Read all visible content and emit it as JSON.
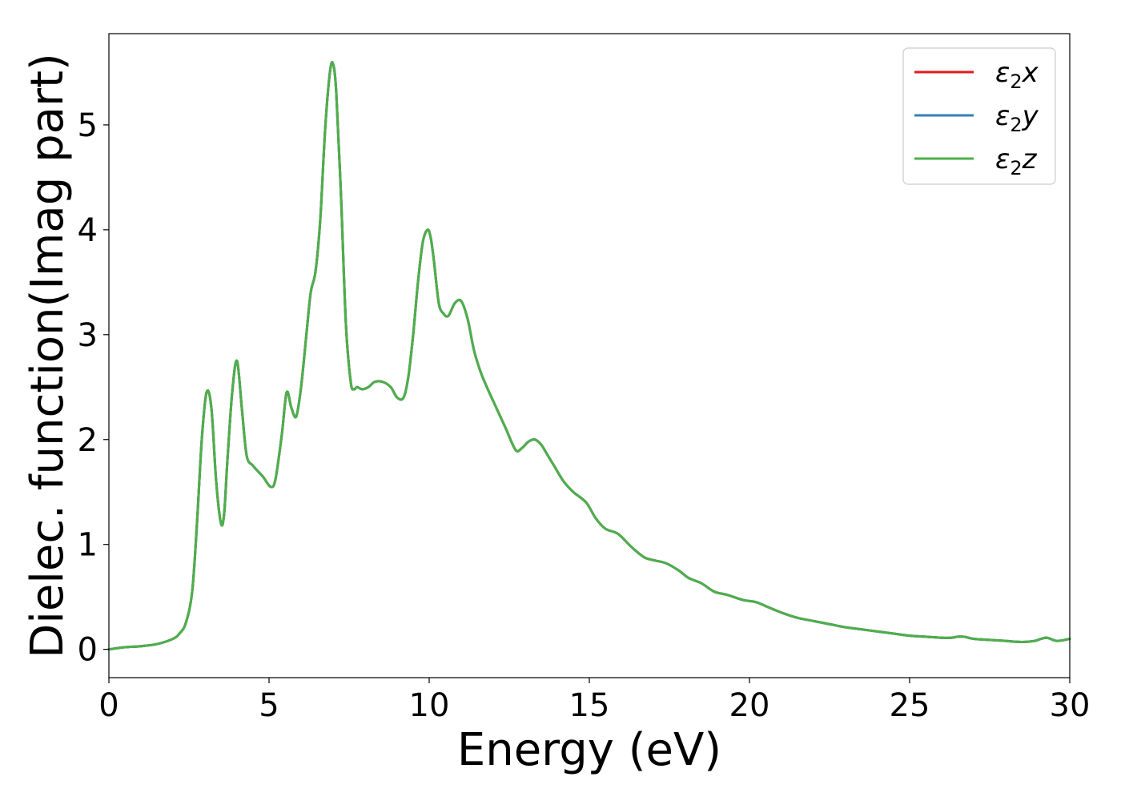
{
  "chart_data": {
    "type": "line",
    "xlabel": "Energy (eV)",
    "ylabel": "Dielec. function(Imag part)",
    "xlim": [
      0,
      30
    ],
    "ylim": [
      -0.27,
      5.87
    ],
    "xticks": [
      0,
      5,
      10,
      15,
      20,
      25,
      30
    ],
    "yticks": [
      0,
      1,
      2,
      3,
      4,
      5
    ],
    "grid": false,
    "legend_position": "top-right",
    "series": [
      {
        "name": "ε2x",
        "legend": {
          "base": "ε",
          "sub": "2",
          "var": "x"
        },
        "color": "#e41a1c",
        "x": [
          0,
          0.5,
          1.0,
          1.5,
          2.0,
          2.2,
          2.4,
          2.6,
          2.75,
          2.9,
          3.05,
          3.2,
          3.35,
          3.5,
          3.6,
          3.7,
          3.85,
          4.0,
          4.15,
          4.3,
          4.5,
          4.8,
          5.05,
          5.2,
          5.4,
          5.55,
          5.7,
          5.85,
          6.0,
          6.15,
          6.3,
          6.45,
          6.6,
          6.75,
          6.9,
          7.0,
          7.1,
          7.25,
          7.4,
          7.55,
          7.65,
          7.75,
          7.9,
          8.1,
          8.3,
          8.55,
          8.8,
          9.0,
          9.2,
          9.35,
          9.5,
          9.65,
          9.8,
          9.95,
          10.05,
          10.15,
          10.3,
          10.45,
          10.6,
          10.8,
          11.0,
          11.2,
          11.4,
          11.6,
          11.8,
          12.1,
          12.4,
          12.7,
          12.9,
          13.1,
          13.3,
          13.5,
          13.7,
          13.9,
          14.2,
          14.5,
          14.9,
          15.2,
          15.5,
          15.9,
          16.3,
          16.7,
          17.0,
          17.4,
          17.8,
          18.1,
          18.5,
          18.9,
          19.3,
          19.8,
          20.2,
          20.6,
          21.0,
          21.5,
          22.0,
          22.5,
          23.0,
          23.5,
          24.0,
          24.5,
          25.0,
          25.5,
          26.0,
          26.3,
          26.5,
          26.7,
          27.0,
          27.5,
          28.0,
          28.5,
          28.9,
          29.1,
          29.3,
          29.6,
          30.0
        ],
        "y": [
          0.0,
          0.02,
          0.03,
          0.05,
          0.1,
          0.15,
          0.25,
          0.55,
          1.2,
          2.0,
          2.45,
          2.3,
          1.6,
          1.2,
          1.3,
          1.8,
          2.45,
          2.75,
          2.3,
          1.85,
          1.75,
          1.65,
          1.55,
          1.62,
          2.05,
          2.45,
          2.3,
          2.22,
          2.5,
          2.95,
          3.4,
          3.6,
          4.1,
          4.95,
          5.5,
          5.58,
          5.3,
          4.3,
          3.1,
          2.55,
          2.48,
          2.5,
          2.48,
          2.5,
          2.55,
          2.55,
          2.5,
          2.4,
          2.4,
          2.6,
          3.0,
          3.5,
          3.88,
          4.0,
          3.92,
          3.7,
          3.3,
          3.2,
          3.18,
          3.3,
          3.32,
          3.15,
          2.85,
          2.65,
          2.5,
          2.3,
          2.1,
          1.9,
          1.92,
          1.98,
          2.0,
          1.95,
          1.85,
          1.75,
          1.6,
          1.5,
          1.4,
          1.25,
          1.15,
          1.1,
          0.98,
          0.88,
          0.85,
          0.82,
          0.75,
          0.68,
          0.63,
          0.55,
          0.52,
          0.47,
          0.45,
          0.4,
          0.35,
          0.3,
          0.27,
          0.24,
          0.21,
          0.19,
          0.17,
          0.15,
          0.13,
          0.12,
          0.11,
          0.11,
          0.12,
          0.12,
          0.1,
          0.09,
          0.08,
          0.07,
          0.08,
          0.1,
          0.11,
          0.08,
          0.1
        ]
      },
      {
        "name": "ε2y",
        "legend": {
          "base": "ε",
          "sub": "2",
          "var": "y"
        },
        "color": "#377eb8",
        "x": [
          0,
          0.5,
          1.0,
          1.5,
          2.0,
          2.2,
          2.4,
          2.6,
          2.75,
          2.9,
          3.05,
          3.2,
          3.35,
          3.5,
          3.6,
          3.7,
          3.85,
          4.0,
          4.15,
          4.3,
          4.5,
          4.8,
          5.05,
          5.2,
          5.4,
          5.55,
          5.7,
          5.85,
          6.0,
          6.15,
          6.3,
          6.45,
          6.6,
          6.75,
          6.9,
          7.0,
          7.1,
          7.25,
          7.4,
          7.55,
          7.65,
          7.75,
          7.9,
          8.1,
          8.3,
          8.55,
          8.8,
          9.0,
          9.2,
          9.35,
          9.5,
          9.65,
          9.8,
          9.95,
          10.05,
          10.15,
          10.3,
          10.45,
          10.6,
          10.8,
          11.0,
          11.2,
          11.4,
          11.6,
          11.8,
          12.1,
          12.4,
          12.7,
          12.9,
          13.1,
          13.3,
          13.5,
          13.7,
          13.9,
          14.2,
          14.5,
          14.9,
          15.2,
          15.5,
          15.9,
          16.3,
          16.7,
          17.0,
          17.4,
          17.8,
          18.1,
          18.5,
          18.9,
          19.3,
          19.8,
          20.2,
          20.6,
          21.0,
          21.5,
          22.0,
          22.5,
          23.0,
          23.5,
          24.0,
          24.5,
          25.0,
          25.5,
          26.0,
          26.3,
          26.5,
          26.7,
          27.0,
          27.5,
          28.0,
          28.5,
          28.9,
          29.1,
          29.3,
          29.6,
          30.0
        ],
        "y": [
          0.0,
          0.02,
          0.03,
          0.05,
          0.1,
          0.15,
          0.25,
          0.55,
          1.2,
          2.0,
          2.45,
          2.3,
          1.6,
          1.2,
          1.3,
          1.8,
          2.45,
          2.75,
          2.3,
          1.85,
          1.75,
          1.65,
          1.55,
          1.62,
          2.05,
          2.45,
          2.3,
          2.22,
          2.5,
          2.95,
          3.4,
          3.6,
          4.1,
          4.95,
          5.5,
          5.58,
          5.3,
          4.3,
          3.1,
          2.55,
          2.48,
          2.5,
          2.48,
          2.5,
          2.55,
          2.55,
          2.5,
          2.4,
          2.4,
          2.6,
          3.0,
          3.5,
          3.88,
          4.0,
          3.92,
          3.7,
          3.3,
          3.2,
          3.18,
          3.3,
          3.32,
          3.15,
          2.85,
          2.65,
          2.5,
          2.3,
          2.1,
          1.9,
          1.92,
          1.98,
          2.0,
          1.95,
          1.85,
          1.75,
          1.6,
          1.5,
          1.4,
          1.25,
          1.15,
          1.1,
          0.98,
          0.88,
          0.85,
          0.82,
          0.75,
          0.68,
          0.63,
          0.55,
          0.52,
          0.47,
          0.45,
          0.4,
          0.35,
          0.3,
          0.27,
          0.24,
          0.21,
          0.19,
          0.17,
          0.15,
          0.13,
          0.12,
          0.11,
          0.11,
          0.12,
          0.12,
          0.1,
          0.09,
          0.08,
          0.07,
          0.08,
          0.1,
          0.11,
          0.08,
          0.1
        ]
      },
      {
        "name": "ε2z",
        "legend": {
          "base": "ε",
          "sub": "2",
          "var": "z"
        },
        "color": "#4daf4a",
        "x": [
          0,
          0.5,
          1.0,
          1.5,
          2.0,
          2.2,
          2.4,
          2.6,
          2.75,
          2.9,
          3.05,
          3.2,
          3.35,
          3.5,
          3.6,
          3.7,
          3.85,
          4.0,
          4.15,
          4.3,
          4.5,
          4.8,
          5.05,
          5.2,
          5.4,
          5.55,
          5.7,
          5.85,
          6.0,
          6.15,
          6.3,
          6.45,
          6.6,
          6.75,
          6.9,
          7.0,
          7.1,
          7.25,
          7.4,
          7.55,
          7.65,
          7.75,
          7.9,
          8.1,
          8.3,
          8.55,
          8.8,
          9.0,
          9.2,
          9.35,
          9.5,
          9.65,
          9.8,
          9.95,
          10.05,
          10.15,
          10.3,
          10.45,
          10.6,
          10.8,
          11.0,
          11.2,
          11.4,
          11.6,
          11.8,
          12.1,
          12.4,
          12.7,
          12.9,
          13.1,
          13.3,
          13.5,
          13.7,
          13.9,
          14.2,
          14.5,
          14.9,
          15.2,
          15.5,
          15.9,
          16.3,
          16.7,
          17.0,
          17.4,
          17.8,
          18.1,
          18.5,
          18.9,
          19.3,
          19.8,
          20.2,
          20.6,
          21.0,
          21.5,
          22.0,
          22.5,
          23.0,
          23.5,
          24.0,
          24.5,
          25.0,
          25.5,
          26.0,
          26.3,
          26.5,
          26.7,
          27.0,
          27.5,
          28.0,
          28.5,
          28.9,
          29.1,
          29.3,
          29.6,
          30.0
        ],
        "y": [
          0.0,
          0.02,
          0.03,
          0.05,
          0.1,
          0.15,
          0.25,
          0.55,
          1.2,
          2.0,
          2.45,
          2.3,
          1.6,
          1.2,
          1.3,
          1.8,
          2.45,
          2.75,
          2.3,
          1.85,
          1.75,
          1.65,
          1.55,
          1.62,
          2.05,
          2.45,
          2.3,
          2.22,
          2.5,
          2.95,
          3.4,
          3.6,
          4.1,
          4.95,
          5.5,
          5.58,
          5.3,
          4.3,
          3.1,
          2.55,
          2.48,
          2.5,
          2.48,
          2.5,
          2.55,
          2.55,
          2.5,
          2.4,
          2.4,
          2.6,
          3.0,
          3.5,
          3.88,
          4.0,
          3.92,
          3.7,
          3.3,
          3.2,
          3.18,
          3.3,
          3.32,
          3.15,
          2.85,
          2.65,
          2.5,
          2.3,
          2.1,
          1.9,
          1.92,
          1.98,
          2.0,
          1.95,
          1.85,
          1.75,
          1.6,
          1.5,
          1.4,
          1.25,
          1.15,
          1.1,
          0.98,
          0.88,
          0.85,
          0.82,
          0.75,
          0.68,
          0.63,
          0.55,
          0.52,
          0.47,
          0.45,
          0.4,
          0.35,
          0.3,
          0.27,
          0.24,
          0.21,
          0.19,
          0.17,
          0.15,
          0.13,
          0.12,
          0.11,
          0.11,
          0.12,
          0.12,
          0.1,
          0.09,
          0.08,
          0.07,
          0.08,
          0.1,
          0.11,
          0.08,
          0.1
        ]
      }
    ]
  }
}
